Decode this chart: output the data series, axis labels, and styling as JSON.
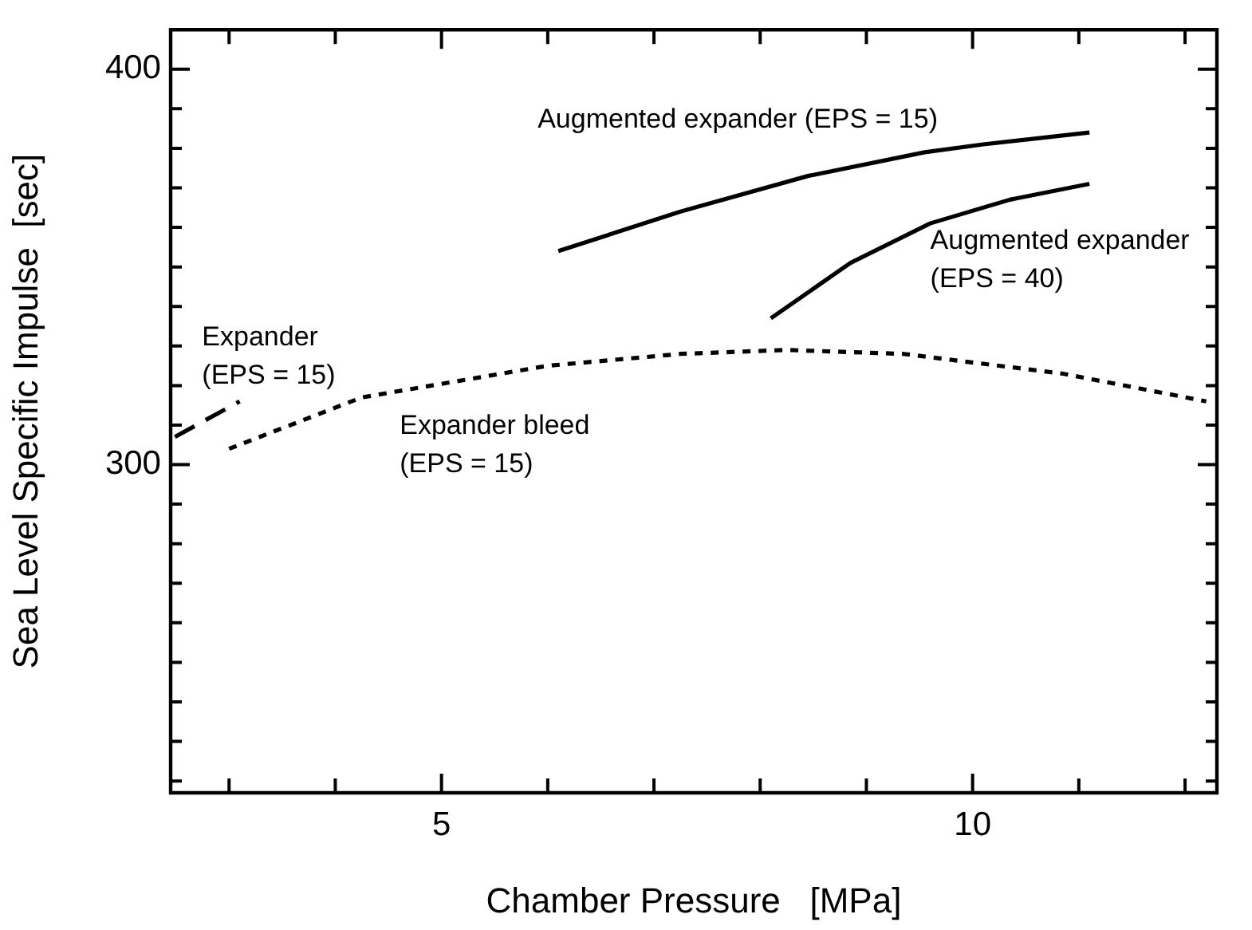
{
  "chart_data": {
    "type": "line",
    "xlabel": "Chamber Pressure   [MPa]",
    "ylabel": "Sea Level Specific Impulse  [sec]",
    "xlim": [
      2.45,
      12.3
    ],
    "ylim": [
      217,
      410
    ],
    "xticks": [
      {
        "value": 3,
        "label": null
      },
      {
        "value": 4,
        "label": null
      },
      5,
      {
        "value": 6,
        "label": null
      },
      {
        "value": 7,
        "label": null
      },
      {
        "value": 8,
        "label": null
      },
      {
        "value": 9,
        "label": null
      },
      10,
      {
        "value": 11,
        "label": null
      },
      {
        "value": 12,
        "label": null
      }
    ],
    "yticks": [
      {
        "value": 220,
        "label": null
      },
      {
        "value": 230,
        "label": null
      },
      {
        "value": 240,
        "label": null
      },
      {
        "value": 250,
        "label": null
      },
      {
        "value": 260,
        "label": null
      },
      {
        "value": 270,
        "label": null
      },
      {
        "value": 280,
        "label": null
      },
      {
        "value": 290,
        "label": null
      },
      300,
      {
        "value": 310,
        "label": null
      },
      {
        "value": 320,
        "label": null
      },
      {
        "value": 330,
        "label": null
      },
      {
        "value": 340,
        "label": null
      },
      {
        "value": 350,
        "label": null
      },
      {
        "value": 360,
        "label": null
      },
      {
        "value": 370,
        "label": null
      },
      {
        "value": 380,
        "label": null
      },
      {
        "value": 390,
        "label": null
      },
      400
    ],
    "grid": false,
    "legend": false,
    "marker": "none",
    "series": [
      {
        "color": "#000000",
        "line_style": "solid",
        "x": [
          6.1,
          7.25,
          8.45,
          9.55,
          10.1,
          11.1
        ],
        "values": [
          354,
          364,
          373,
          379,
          381,
          384
        ]
      },
      {
        "color": "#000000",
        "line_style": "solid",
        "x": [
          8.1,
          8.85,
          9.6,
          10.35,
          11.1
        ],
        "values": [
          337,
          351,
          361,
          367,
          371
        ]
      },
      {
        "color": "#000000",
        "line_style": "dashed",
        "x": [
          2.49,
          3.1
        ],
        "values": [
          307,
          316
        ]
      },
      {
        "color": "#000000",
        "line_style": "dotted",
        "x": [
          3.0,
          4.25,
          6.0,
          7.25,
          8.25,
          9.35,
          10.85,
          12.2
        ],
        "values": [
          304,
          317,
          325,
          328,
          329,
          328,
          323,
          316
        ]
      }
    ],
    "annotations": [
      "Augmented expander (EPS = 15)",
      "Augmented expander\n(EPS = 40)",
      "Expander\n(EPS = 15)",
      "Expander bleed\n(EPS = 15)"
    ]
  }
}
